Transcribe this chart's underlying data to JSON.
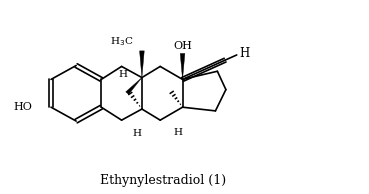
{
  "title": "Ethynylestradiol (1)",
  "title_fontsize": 9,
  "bg_color": "#ffffff",
  "line_color": "#000000",
  "line_width": 1.2,
  "figsize": [
    3.69,
    1.94
  ],
  "dpi": 100,
  "xlim": [
    0,
    9.5
  ],
  "ylim": [
    0,
    5.2
  ]
}
